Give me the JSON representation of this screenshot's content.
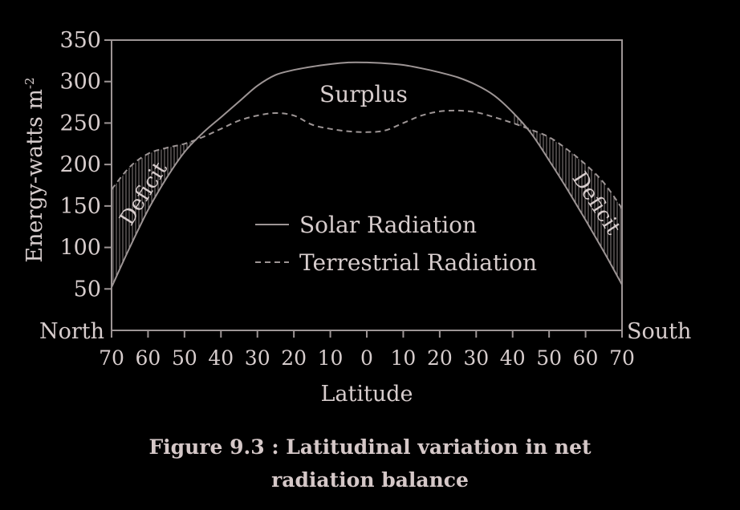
{
  "chart_data": {
    "type": "line",
    "ylabel": "Energy-watts m",
    "ylabel_superscript": "-2",
    "xlabel": "Latitude",
    "ylim": [
      0,
      350
    ],
    "yticks": [
      "350",
      "300",
      "250",
      "200",
      "150",
      "100",
      "50"
    ],
    "ytick_values": [
      350,
      300,
      250,
      200,
      150,
      100,
      50
    ],
    "xticks": [
      "70",
      "60",
      "50",
      "40",
      "30",
      "20",
      "10",
      "0",
      "10",
      "20",
      "30",
      "40",
      "50",
      "60",
      "70"
    ],
    "x_left_label": "North",
    "x_right_label": "South",
    "x": [
      -70,
      -65,
      -60,
      -55,
      -50,
      -45,
      -40,
      -35,
      -30,
      -25,
      -20,
      -15,
      -10,
      -5,
      0,
      5,
      10,
      15,
      20,
      25,
      30,
      35,
      40,
      45,
      50,
      55,
      60,
      65,
      70
    ],
    "series": [
      {
        "name": "Solar Radiation",
        "style": "solid",
        "values": [
          52,
          100,
          145,
          183,
          215,
          238,
          257,
          276,
          295,
          308,
          314,
          318,
          321,
          323,
          323,
          322,
          320,
          316,
          311,
          305,
          296,
          283,
          263,
          238,
          205,
          170,
          133,
          95,
          55
        ]
      },
      {
        "name": "Terrestrial Radiation",
        "style": "dashed",
        "values": [
          170,
          197,
          213,
          220,
          225,
          233,
          243,
          253,
          259,
          262,
          259,
          248,
          243,
          240,
          239,
          241,
          250,
          259,
          264,
          265,
          263,
          257,
          250,
          242,
          233,
          218,
          200,
          178,
          147
        ]
      }
    ],
    "annotations": {
      "surplus": "Surplus",
      "deficit_left": "Deficit",
      "deficit_right": "Deficit"
    }
  },
  "caption": {
    "line1": "Figure 9.3 : Latitudinal variation in net",
    "line2": "radiation balance"
  },
  "colors": {
    "background": "#000000",
    "foreground": "#d7cdcd",
    "lines": "#9d9595"
  }
}
